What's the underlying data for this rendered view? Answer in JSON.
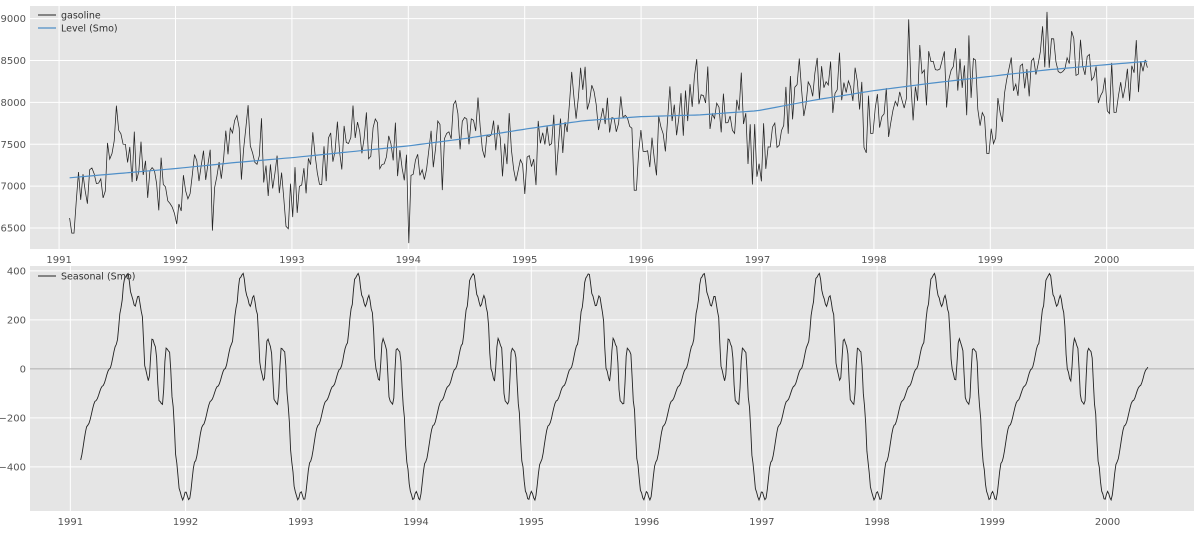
{
  "chart_data": [
    {
      "type": "line",
      "xlim": [
        1990.75,
        2000.75
      ],
      "ylim": [
        6250,
        9150
      ],
      "x_ticks": [
        {
          "value": 1991,
          "label": "1991"
        },
        {
          "value": 1992,
          "label": "1992"
        },
        {
          "value": 1993,
          "label": "1993"
        },
        {
          "value": 1994,
          "label": "1994"
        },
        {
          "value": 1995,
          "label": "1995"
        },
        {
          "value": 1996,
          "label": "1996"
        },
        {
          "value": 1997,
          "label": "1997"
        },
        {
          "value": 1998,
          "label": "1998"
        },
        {
          "value": 1999,
          "label": "1999"
        },
        {
          "value": 2000,
          "label": "2000"
        }
      ],
      "y_ticks": [
        {
          "value": 6500,
          "label": "6500"
        },
        {
          "value": 7000,
          "label": "7000"
        },
        {
          "value": 7500,
          "label": "7500"
        },
        {
          "value": 8000,
          "label": "8000"
        },
        {
          "value": 8500,
          "label": "8500"
        },
        {
          "value": 9000,
          "label": "9000"
        }
      ],
      "grid": true,
      "legend_position": "top-left",
      "series": [
        {
          "name": "gasoline",
          "color": "#222222",
          "kind": "weekly-fluctuating",
          "x_start": 1991.09,
          "x_end": 2000.35,
          "points": 484,
          "start_value": 6620,
          "notable_points": [
            {
              "x": 1991.12,
              "y": 6440
            },
            {
              "x": 1991.5,
              "y": 7960
            },
            {
              "x": 1992.32,
              "y": 6470
            },
            {
              "x": 1994.01,
              "y": 6320
            },
            {
              "x": 1995.95,
              "y": 6950
            },
            {
              "x": 1996.95,
              "y": 7020
            },
            {
              "x": 1998.3,
              "y": 8990
            },
            {
              "x": 1999.48,
              "y": 9080
            },
            {
              "x": 1998.98,
              "y": 7390
            }
          ]
        },
        {
          "name": "Level (Smo)",
          "color": "#4f8fc8",
          "x": [
            1991.09,
            1991.5,
            1992.0,
            1992.5,
            1993.0,
            1993.5,
            1994.0,
            1994.5,
            1995.0,
            1995.5,
            1996.0,
            1996.5,
            1997.0,
            1997.5,
            1998.0,
            1998.5,
            1999.0,
            1999.5,
            2000.0,
            2000.35
          ],
          "y": [
            7100,
            7150,
            7210,
            7280,
            7340,
            7410,
            7480,
            7570,
            7680,
            7780,
            7830,
            7850,
            7900,
            8030,
            8140,
            8230,
            8310,
            8390,
            8450,
            8490
          ]
        }
      ]
    },
    {
      "type": "line",
      "xlim": [
        1990.65,
        2000.75
      ],
      "ylim": [
        -580,
        420
      ],
      "x_ticks": [
        {
          "value": 1991,
          "label": "1991"
        },
        {
          "value": 1992,
          "label": "1992"
        },
        {
          "value": 1993,
          "label": "1993"
        },
        {
          "value": 1994,
          "label": "1994"
        },
        {
          "value": 1995,
          "label": "1995"
        },
        {
          "value": 1996,
          "label": "1996"
        },
        {
          "value": 1997,
          "label": "1997"
        },
        {
          "value": 1998,
          "label": "1998"
        },
        {
          "value": 1999,
          "label": "1999"
        },
        {
          "value": 2000,
          "label": "2000"
        }
      ],
      "y_ticks": [
        {
          "value": 400,
          "label": "400"
        },
        {
          "value": 200,
          "label": "200"
        },
        {
          "value": 0,
          "label": "0"
        },
        {
          "value": -200,
          "label": "−200"
        },
        {
          "value": -400,
          "label": "−400"
        }
      ],
      "grid": true,
      "zero_line": true,
      "legend_position": "top-left",
      "series": [
        {
          "name": "Seasonal (Smo)",
          "color": "#222222",
          "x_start": 1991.09,
          "x_end": 2000.35,
          "annual_pattern": {
            "year_fraction": [
              0.0,
              0.03,
              0.08,
              0.15,
              0.22,
              0.28,
              0.34,
              0.4,
              0.44,
              0.47,
              0.5,
              0.53,
              0.56,
              0.59,
              0.62,
              0.65,
              0.68,
              0.71,
              0.74,
              0.77,
              0.8,
              0.83,
              0.86,
              0.89,
              0.92,
              0.95,
              0.975,
              1.0
            ],
            "value": [
              -500,
              -535,
              -380,
              -230,
              -130,
              -70,
              0,
              100,
              250,
              370,
              390,
              300,
              255,
              300,
              230,
              0,
              -50,
              125,
              90,
              -130,
              -145,
              85,
              70,
              -150,
              -380,
              -500,
              -535,
              -500
            ]
          }
        }
      ]
    }
  ]
}
